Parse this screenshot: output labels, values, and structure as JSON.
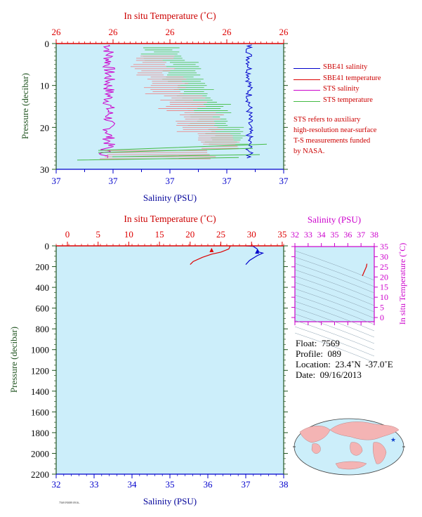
{
  "colors": {
    "salinity": "#0000cc",
    "temperature": "#dd0000",
    "sts_salinity": "#cc00cc",
    "sts_temperature": "#44bb44",
    "sts_temperature_light": "#f08080",
    "plot_bg": "#cceefa",
    "pressure_label": "#225522",
    "ts_axis": "#cc00cc"
  },
  "top_chart": {
    "title_temperature": "In situ Temperature (˚C)",
    "temp_ticks": [
      "26",
      "26",
      "26",
      "26",
      "26"
    ],
    "ylabel": "Pressure (decibar)",
    "pressure_ticks": [
      "0",
      "10",
      "20",
      "30"
    ],
    "salinity_ticks": [
      "37",
      "37",
      "37",
      "37",
      "37",
      "37",
      "37",
      "37",
      "37"
    ],
    "xlabel": "Salinity (PSU)"
  },
  "legend": [
    {
      "label": "SBE41 salinity",
      "color": "#0000cc"
    },
    {
      "label": "SBE41 temperature",
      "color": "#dd0000"
    },
    {
      "label": "STS salinity",
      "color": "#cc00cc"
    },
    {
      "label": "STS temperature",
      "color": "#44bb44"
    }
  ],
  "note_lines": [
    "STS refers to auxiliary",
    "high-resolution near-surface",
    "T-S measurements funded",
    "by NASA."
  ],
  "bottom_chart": {
    "title_temperature": "In situ Temperature (˚C)",
    "temp_ticks": [
      "0",
      "5",
      "10",
      "15",
      "20",
      "25",
      "30",
      "35"
    ],
    "ylabel": "Pressure (decibar)",
    "pressure_ticks": [
      "0",
      "200",
      "400",
      "600",
      "800",
      "1000",
      "1200",
      "1400",
      "1600",
      "1800",
      "2000",
      "2200"
    ],
    "salinity_ticks": [
      "32",
      "33",
      "34",
      "35",
      "36",
      "37",
      "38"
    ],
    "xlabel": "Salinity (PSU)"
  },
  "ts_diagram": {
    "title": "Salinity (PSU)",
    "salinity_ticks": [
      "32",
      "33",
      "34",
      "35",
      "36",
      "37",
      "38"
    ],
    "temp_ticks": [
      "0",
      "5",
      "10",
      "15",
      "20",
      "25",
      "30",
      "35"
    ],
    "ylabel": "In situ Temperature (˚C)"
  },
  "float_info": {
    "float": "Float:  7569",
    "profile": "Profile:  089",
    "location": "Location:  23.4˚N  -37.0˚E",
    "date": "Date:  09/16/2013"
  },
  "chart_data": [
    {
      "type": "line",
      "title": "In situ Temperature (˚C)",
      "xlabel": "Salinity (PSU)",
      "ylabel": "Pressure (decibar)",
      "ylim": [
        30,
        0
      ],
      "series": [
        {
          "name": "SBE41 salinity",
          "x": [
            37.3,
            37.31,
            37.3,
            37.32,
            37.33,
            37.34
          ],
          "y": [
            2,
            8,
            14,
            20,
            26,
            28
          ]
        },
        {
          "name": "SBE41 temperature",
          "x": [
            26.6,
            26.6,
            26.5,
            26.4,
            26.2,
            26.1
          ],
          "y": [
            2,
            8,
            14,
            20,
            26,
            28
          ]
        },
        {
          "name": "STS salinity",
          "x": [
            37.05,
            37.07,
            37.06,
            37.05,
            37.08,
            37.1
          ],
          "y": [
            1,
            8,
            14,
            20,
            26,
            28
          ]
        },
        {
          "name": "STS temperature",
          "x": [
            26.7,
            26.6,
            26.5,
            26.4,
            26.2,
            26.1
          ],
          "y": [
            1,
            8,
            14,
            20,
            26,
            28
          ]
        }
      ]
    },
    {
      "type": "line",
      "title": "In situ Temperature (˚C)",
      "xlabel": "Salinity (PSU)",
      "ylabel": "Pressure (decibar)",
      "ylim": [
        2200,
        0
      ],
      "xlim_salinity": [
        32,
        38
      ],
      "xlim_temperature": [
        0,
        35
      ],
      "series": [
        {
          "name": "SBE41 salinity",
          "x": [
            37.2,
            37.3,
            37.35,
            37.45,
            37.3,
            37.1,
            37.0
          ],
          "y": [
            5,
            30,
            60,
            70,
            95,
            140,
            180
          ]
        },
        {
          "name": "SBE41 temperature",
          "x": [
            26.5,
            26.3,
            25.0,
            23.5,
            22.0,
            20.5,
            20.0
          ],
          "y": [
            5,
            30,
            60,
            80,
            110,
            150,
            180
          ]
        }
      ]
    },
    {
      "type": "line",
      "title": "Salinity (PSU)",
      "ylabel": "In situ Temperature (˚C)",
      "xlim": [
        32,
        38
      ],
      "ylim": [
        0,
        35
      ],
      "series": [
        {
          "x": [
            37.1,
            37.2,
            37.3,
            37.4,
            37.45
          ],
          "y": [
            20.5,
            22,
            23.5,
            25,
            26.5
          ]
        }
      ]
    }
  ]
}
